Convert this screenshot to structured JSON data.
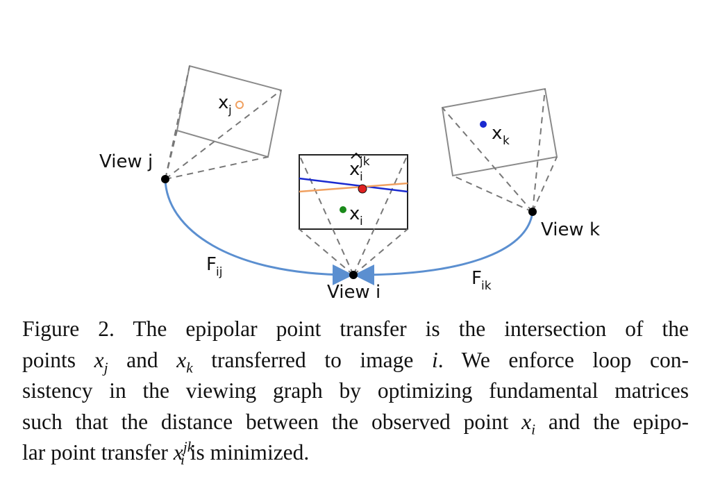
{
  "figure": {
    "labels": {
      "view_j": "View j",
      "view_k": "View k",
      "view_i": "View i",
      "f_ij_main": "F",
      "f_ij_sub": "ij",
      "f_ik_main": "F",
      "f_ik_sub": "ik",
      "x_j_main": "x",
      "x_j_sub": "j",
      "x_k_main": "x",
      "x_k_sub": "k",
      "x_i_main": "x",
      "x_i_sub": "i",
      "x_hat_main": "x",
      "x_hat_sub": "i",
      "x_hat_sup": "jk"
    },
    "colors": {
      "arc": "#5b8fd0",
      "frame": "#8a8a8a",
      "dash": "#777777",
      "orange_point": "#f0a060",
      "blue_point": "#1a2ad0",
      "green_point": "#1a8a1a",
      "red_point": "#e02020",
      "blue_line": "#1a2ad0",
      "orange_line": "#f0a060"
    }
  },
  "caption": {
    "l1": "Figure 2. The epipolar point transfer is the intersection of the",
    "l2_a": "points ",
    "l2_xj": "x",
    "l2_j": "j",
    "l2_b": " and ",
    "l2_xk": "x",
    "l2_k": "k",
    "l2_c": " transferred to image ",
    "l2_i": "i",
    "l2_d": ".  We enforce loop con-",
    "l3": "sistency in the viewing graph by optimizing fundamental matrices",
    "l4_a": "such that the distance between the observed point ",
    "l4_x": "x",
    "l4_sub": "i",
    "l4_b": " and the epipo-",
    "l5_a": "lar point transfer ",
    "l5_x": "x",
    "l5_sup": "jk",
    "l5_sub": "i",
    "l5_b": " is minimized."
  }
}
